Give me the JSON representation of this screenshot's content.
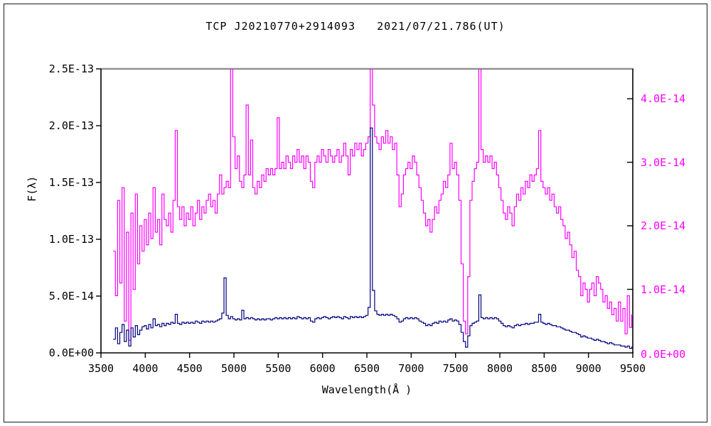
{
  "title": "TCP J20210770+2914093   2021/07/21.786(UT)",
  "colors": {
    "background": "#ffffff",
    "frame": "#1a1a1a",
    "axis": "#000000",
    "plot_top_border": "#919191",
    "left_series": "#000080",
    "right_series": "#ff00ff",
    "right_tick_text": "#ff00ff",
    "left_tick_text": "#000000"
  },
  "chart_data": {
    "type": "line",
    "title": "TCP J20210770+2914093   2021/07/21.786(UT)",
    "xlabel": "Wavelength(Å )",
    "ylabel_left": "F(λ)",
    "grid": false,
    "legend": "none",
    "x_axis": {
      "min": 3500,
      "max": 9500,
      "tick_step": 500,
      "tick_values": [
        3500,
        4000,
        4500,
        5000,
        5500,
        6000,
        6500,
        7000,
        7500,
        8000,
        8500,
        9000,
        9500
      ],
      "tick_labels": [
        "3500",
        "4000",
        "4500",
        "5000",
        "5500",
        "6000",
        "6500",
        "7000",
        "7500",
        "8000",
        "8500",
        "9000",
        "9500"
      ]
    },
    "y_left": {
      "unit": "1e-13 erg s-1 cm-2 A-1 (as shown)",
      "min": 0,
      "max_at_top": 2.5,
      "tick_values": [
        2.5,
        2.0,
        1.5,
        1.0,
        0.5,
        0.0
      ],
      "tick_labels": [
        "2.5E-13",
        "2.0E-13",
        "1.5E-13",
        "1.0E-13",
        "5.0E-14",
        "0.0E+00"
      ]
    },
    "y_right": {
      "unit": "1e-14 (as shown)",
      "min": 0,
      "max_at_top": 4.47,
      "tick_values": [
        4.0,
        3.0,
        2.0,
        1.0,
        0.0
      ],
      "tick_labels": [
        "4.0E-14",
        "3.0E-14",
        "2.0E-14",
        "1.0E-14",
        "0.0E+00"
      ]
    },
    "series": [
      {
        "name": "spectrum-magenta-right-scale",
        "color": "#ff00ff",
        "axis": "right",
        "value_unit": "1e-14",
        "x_start": 3650,
        "x_step": 25,
        "values": [
          1.6,
          0.9,
          2.4,
          1.1,
          2.6,
          0.5,
          1.9,
          0.2,
          2.2,
          1.0,
          2.5,
          1.4,
          2.0,
          1.6,
          2.1,
          1.7,
          2.2,
          1.8,
          2.6,
          1.9,
          2.1,
          1.7,
          2.5,
          2.1,
          2.0,
          2.2,
          1.9,
          2.4,
          3.5,
          2.3,
          2.1,
          2.3,
          2.0,
          2.2,
          2.1,
          2.3,
          2.0,
          2.2,
          2.4,
          2.1,
          2.3,
          2.2,
          2.4,
          2.5,
          2.3,
          2.4,
          2.2,
          2.5,
          2.8,
          2.5,
          2.6,
          2.7,
          2.6,
          5.0,
          3.4,
          2.9,
          3.1,
          2.7,
          2.6,
          2.8,
          3.9,
          2.8,
          3.35,
          2.6,
          2.5,
          2.7,
          2.6,
          2.8,
          2.7,
          2.9,
          2.8,
          2.9,
          2.8,
          2.9,
          3.7,
          2.9,
          3.0,
          2.9,
          3.1,
          3.0,
          2.9,
          3.1,
          3.0,
          3.2,
          3.0,
          3.1,
          2.9,
          3.1,
          3.0,
          2.7,
          2.6,
          3.0,
          3.1,
          3.0,
          3.2,
          3.1,
          3.0,
          3.2,
          3.1,
          3.0,
          3.1,
          3.2,
          3.0,
          3.1,
          3.3,
          3.1,
          2.8,
          3.2,
          3.1,
          3.3,
          3.2,
          3.3,
          3.1,
          3.2,
          3.3,
          3.4,
          5.0,
          3.9,
          3.4,
          3.3,
          3.2,
          3.4,
          3.3,
          3.5,
          3.3,
          3.4,
          3.2,
          3.3,
          2.8,
          2.3,
          2.5,
          2.8,
          2.9,
          3.0,
          2.9,
          3.1,
          3.0,
          2.8,
          2.6,
          2.4,
          2.2,
          2.0,
          2.1,
          1.9,
          2.1,
          2.3,
          2.2,
          2.4,
          2.5,
          2.7,
          2.6,
          2.8,
          3.3,
          2.9,
          3.0,
          2.8,
          2.4,
          1.4,
          0.5,
          0.3,
          1.2,
          2.4,
          2.7,
          2.9,
          3.0,
          5.0,
          3.2,
          3.0,
          3.1,
          3.0,
          3.1,
          2.9,
          3.0,
          2.8,
          2.6,
          2.4,
          2.2,
          2.1,
          2.3,
          2.2,
          2.0,
          2.3,
          2.5,
          2.4,
          2.6,
          2.5,
          2.7,
          2.6,
          2.8,
          2.7,
          2.8,
          2.9,
          3.5,
          2.7,
          2.6,
          2.5,
          2.6,
          2.4,
          2.5,
          2.3,
          2.2,
          2.3,
          2.1,
          2.0,
          1.8,
          1.9,
          1.7,
          1.5,
          1.6,
          1.3,
          1.2,
          0.9,
          1.1,
          1.0,
          0.8,
          1.0,
          1.1,
          0.9,
          1.2,
          1.1,
          1.0,
          0.8,
          0.9,
          0.7,
          0.8,
          0.6,
          0.7,
          0.5,
          0.8,
          0.5,
          0.7,
          0.3,
          0.9,
          0.4,
          0.6
        ]
      },
      {
        "name": "spectrum-navy-left-scale",
        "color": "#000080",
        "axis": "left",
        "value_unit": "1e-13",
        "x_start": 3650,
        "x_step": 25,
        "values": [
          0.12,
          0.22,
          0.08,
          0.18,
          0.25,
          0.1,
          0.2,
          0.06,
          0.22,
          0.14,
          0.24,
          0.16,
          0.2,
          0.23,
          0.24,
          0.21,
          0.25,
          0.22,
          0.3,
          0.24,
          0.25,
          0.23,
          0.26,
          0.24,
          0.26,
          0.25,
          0.27,
          0.26,
          0.34,
          0.26,
          0.25,
          0.27,
          0.26,
          0.27,
          0.26,
          0.27,
          0.26,
          0.28,
          0.27,
          0.26,
          0.28,
          0.27,
          0.28,
          0.27,
          0.28,
          0.27,
          0.28,
          0.29,
          0.3,
          0.35,
          0.66,
          0.33,
          0.3,
          0.32,
          0.3,
          0.29,
          0.3,
          0.29,
          0.375,
          0.3,
          0.31,
          0.3,
          0.31,
          0.3,
          0.29,
          0.3,
          0.29,
          0.3,
          0.29,
          0.3,
          0.3,
          0.29,
          0.3,
          0.31,
          0.3,
          0.31,
          0.3,
          0.31,
          0.3,
          0.31,
          0.3,
          0.31,
          0.3,
          0.32,
          0.31,
          0.3,
          0.31,
          0.3,
          0.31,
          0.28,
          0.27,
          0.3,
          0.31,
          0.3,
          0.31,
          0.32,
          0.31,
          0.3,
          0.31,
          0.32,
          0.31,
          0.32,
          0.31,
          0.3,
          0.32,
          0.31,
          0.3,
          0.32,
          0.31,
          0.32,
          0.31,
          0.32,
          0.31,
          0.32,
          0.33,
          0.4,
          1.98,
          0.55,
          0.37,
          0.34,
          0.33,
          0.34,
          0.33,
          0.34,
          0.33,
          0.34,
          0.33,
          0.32,
          0.3,
          0.27,
          0.28,
          0.3,
          0.31,
          0.3,
          0.31,
          0.3,
          0.31,
          0.3,
          0.28,
          0.27,
          0.26,
          0.24,
          0.25,
          0.24,
          0.26,
          0.27,
          0.26,
          0.28,
          0.27,
          0.28,
          0.27,
          0.29,
          0.3,
          0.28,
          0.29,
          0.28,
          0.25,
          0.18,
          0.1,
          0.05,
          0.15,
          0.24,
          0.26,
          0.27,
          0.28,
          0.51,
          0.31,
          0.3,
          0.31,
          0.3,
          0.31,
          0.3,
          0.31,
          0.3,
          0.28,
          0.26,
          0.24,
          0.23,
          0.24,
          0.23,
          0.22,
          0.24,
          0.25,
          0.24,
          0.25,
          0.25,
          0.26,
          0.25,
          0.26,
          0.26,
          0.27,
          0.27,
          0.34,
          0.27,
          0.26,
          0.25,
          0.26,
          0.25,
          0.24,
          0.24,
          0.23,
          0.23,
          0.22,
          0.21,
          0.2,
          0.2,
          0.19,
          0.18,
          0.18,
          0.17,
          0.16,
          0.14,
          0.15,
          0.14,
          0.13,
          0.13,
          0.12,
          0.11,
          0.12,
          0.11,
          0.1,
          0.1,
          0.09,
          0.08,
          0.09,
          0.08,
          0.07,
          0.07,
          0.07,
          0.06,
          0.06,
          0.05,
          0.06,
          0.04,
          0.05
        ]
      }
    ]
  }
}
